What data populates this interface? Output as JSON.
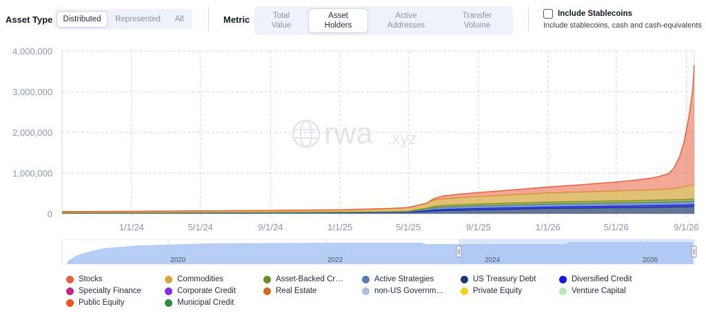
{
  "controls": {
    "asset_type": {
      "label": "Asset Type",
      "options": [
        "Distributed",
        "Represented",
        "All"
      ],
      "selected": "Distributed"
    },
    "metric": {
      "label": "Metric",
      "options": [
        "Total\nValue",
        "Asset\nHolders",
        "Active\nAddresses",
        "Transfer\nVolume"
      ],
      "selected": "Asset\nHolders"
    },
    "stablecoins": {
      "label": "Include Stablecoins",
      "description": "Include stablecoins, cash and cash-equivalents",
      "checked": false
    }
  },
  "watermark": {
    "text": "rwa",
    "suffix": ".xyz"
  },
  "navigator": {
    "year_labels": [
      "2020",
      "2022",
      "2024",
      "2026"
    ]
  },
  "chart_data": {
    "type": "area",
    "stacked": true,
    "title": "",
    "xlabel": "",
    "ylabel": "",
    "ylim": [
      0,
      4000000
    ],
    "yticks": [
      0,
      1000000,
      2000000,
      3000000,
      4000000
    ],
    "ytick_labels": [
      "0",
      "1,000,000",
      "2,000,000",
      "3,000,000",
      "4,000,000"
    ],
    "xlim": [
      "2023-09-01",
      "2026-09-15"
    ],
    "xticks": [
      "2024-01-01",
      "2024-05-01",
      "2024-09-01",
      "2025-01-01",
      "2025-05-01",
      "2025-09-01",
      "2026-01-01",
      "2026-05-01",
      "2026-09-01"
    ],
    "xtick_labels": [
      "1/1/24",
      "5/1/24",
      "9/1/24",
      "1/1/25",
      "5/1/25",
      "9/1/25",
      "1/1/26",
      "5/1/26",
      "9/1/26"
    ],
    "grid": true,
    "legend_position": "bottom",
    "x": [
      "2023-09-01",
      "2024-01-01",
      "2024-05-01",
      "2024-09-01",
      "2025-01-01",
      "2025-04-01",
      "2025-05-01",
      "2025-06-01",
      "2025-06-15",
      "2025-07-01",
      "2025-08-01",
      "2025-09-01",
      "2025-11-01",
      "2026-01-01",
      "2026-03-01",
      "2026-05-01",
      "2026-06-01",
      "2026-07-01",
      "2026-07-15",
      "2026-08-01",
      "2026-08-10",
      "2026-08-20",
      "2026-08-28",
      "2026-09-05",
      "2026-09-12",
      "2026-09-15"
    ],
    "series": [
      {
        "name": "US Treasury Debt",
        "color": "#1e3a6e",
        "values": [
          20000,
          22000,
          25000,
          28000,
          32000,
          38000,
          42000,
          55000,
          70000,
          80000,
          90000,
          100000,
          115000,
          130000,
          140000,
          150000,
          155000,
          160000,
          163000,
          166000,
          168000,
          170000,
          172000,
          175000,
          178000,
          180000
        ]
      },
      {
        "name": "Diversified Credit",
        "color": "#1a14e6",
        "values": [
          0,
          0,
          0,
          0,
          0,
          2000,
          3000,
          15000,
          25000,
          28000,
          32000,
          35000,
          38000,
          40000,
          42000,
          44000,
          45000,
          46000,
          47000,
          48000,
          48000,
          49000,
          49000,
          50000,
          50000,
          50000
        ]
      },
      {
        "name": "Active Strategies",
        "color": "#4f7fb3",
        "values": [
          0,
          0,
          0,
          2000,
          4000,
          6000,
          8000,
          30000,
          45000,
          50000,
          52000,
          55000,
          58000,
          60000,
          62000,
          63000,
          64000,
          65000,
          65000,
          66000,
          66000,
          67000,
          67000,
          68000,
          68000,
          68000
        ]
      },
      {
        "name": "Asset-Backed Credit",
        "color": "#6b8e23",
        "values": [
          2000,
          3000,
          4000,
          5000,
          6000,
          8000,
          10000,
          35000,
          45000,
          48000,
          50000,
          52000,
          55000,
          58000,
          60000,
          62000,
          63000,
          64000,
          65000,
          66000,
          66000,
          67000,
          67000,
          68000,
          68000,
          68000
        ]
      },
      {
        "name": "Commodities",
        "color": "#d4a63a",
        "values": [
          30000,
          35000,
          40000,
          45000,
          55000,
          75000,
          90000,
          120000,
          150000,
          160000,
          170000,
          180000,
          200000,
          220000,
          230000,
          240000,
          245000,
          250000,
          255000,
          260000,
          270000,
          290000,
          310000,
          330000,
          340000,
          340000
        ]
      },
      {
        "name": "Stocks",
        "color": "#e8603c",
        "values": [
          0,
          0,
          0,
          0,
          0,
          0,
          0,
          0,
          40000,
          70000,
          90000,
          100000,
          120000,
          150000,
          180000,
          220000,
          250000,
          290000,
          320000,
          380000,
          500000,
          750000,
          1100000,
          1650000,
          2300000,
          2950000
        ]
      },
      {
        "name": "Specialty Finance",
        "color": "#c2258a",
        "values": [
          0,
          0,
          0,
          0,
          0,
          0,
          0,
          0,
          0,
          0,
          0,
          0,
          0,
          0,
          0,
          0,
          0,
          0,
          0,
          0,
          0,
          0,
          0,
          0,
          0,
          0
        ]
      },
      {
        "name": "Corporate Credit",
        "color": "#8b2be2",
        "values": [
          0,
          0,
          0,
          0,
          0,
          0,
          0,
          0,
          0,
          0,
          0,
          0,
          0,
          0,
          0,
          0,
          0,
          0,
          0,
          0,
          0,
          0,
          0,
          0,
          0,
          0
        ]
      },
      {
        "name": "Real Estate",
        "color": "#d2691e",
        "values": [
          0,
          0,
          0,
          0,
          0,
          0,
          0,
          0,
          0,
          0,
          0,
          0,
          0,
          0,
          0,
          0,
          0,
          0,
          0,
          0,
          0,
          0,
          0,
          0,
          0,
          0
        ]
      },
      {
        "name": "non-US Governm…",
        "color": "#a9bfdc",
        "values": [
          0,
          0,
          0,
          0,
          0,
          0,
          0,
          0,
          0,
          0,
          0,
          0,
          0,
          0,
          0,
          0,
          0,
          0,
          0,
          0,
          0,
          0,
          0,
          0,
          0,
          0
        ]
      },
      {
        "name": "Private Equity",
        "color": "#f2d11b",
        "values": [
          0,
          0,
          0,
          0,
          0,
          0,
          0,
          0,
          0,
          0,
          0,
          0,
          0,
          0,
          0,
          0,
          0,
          0,
          0,
          0,
          0,
          0,
          0,
          0,
          0,
          0
        ]
      },
      {
        "name": "Venture Capital",
        "color": "#b5e8b5",
        "values": [
          0,
          0,
          0,
          0,
          0,
          0,
          0,
          0,
          0,
          0,
          0,
          0,
          0,
          0,
          0,
          0,
          0,
          0,
          0,
          0,
          0,
          0,
          0,
          0,
          0,
          0
        ]
      },
      {
        "name": "Public Equity",
        "color": "#f2501e",
        "values": [
          0,
          0,
          0,
          0,
          0,
          0,
          0,
          0,
          0,
          0,
          0,
          0,
          0,
          0,
          0,
          0,
          0,
          0,
          0,
          0,
          0,
          0,
          0,
          0,
          0,
          0
        ]
      },
      {
        "name": "Municipal Credit",
        "color": "#2e8b3a",
        "values": [
          0,
          0,
          0,
          0,
          0,
          0,
          0,
          0,
          0,
          0,
          0,
          0,
          0,
          0,
          0,
          0,
          0,
          0,
          0,
          0,
          0,
          0,
          0,
          0,
          0,
          0
        ]
      }
    ],
    "legend": [
      {
        "name": "Stocks",
        "color": "#e8603c"
      },
      {
        "name": "Commodities",
        "color": "#d4a63a"
      },
      {
        "name": "Asset-Backed Cr…",
        "color": "#6b8e23"
      },
      {
        "name": "Active Strategies",
        "color": "#4f7fb3"
      },
      {
        "name": "US Treasury Debt",
        "color": "#1e3a6e"
      },
      {
        "name": "Diversified Credit",
        "color": "#1a14e6"
      },
      {
        "name": "Specialty Finance",
        "color": "#c2258a"
      },
      {
        "name": "Corporate Credit",
        "color": "#8b2be2"
      },
      {
        "name": "Real Estate",
        "color": "#d2691e"
      },
      {
        "name": "non-US Governm…",
        "color": "#a9bfdc"
      },
      {
        "name": "Private Equity",
        "color": "#f2d11b"
      },
      {
        "name": "Venture Capital",
        "color": "#b5e8b5"
      },
      {
        "name": "Public Equity",
        "color": "#f2501e"
      },
      {
        "name": "Municipal Credit",
        "color": "#2e8b3a"
      }
    ]
  }
}
